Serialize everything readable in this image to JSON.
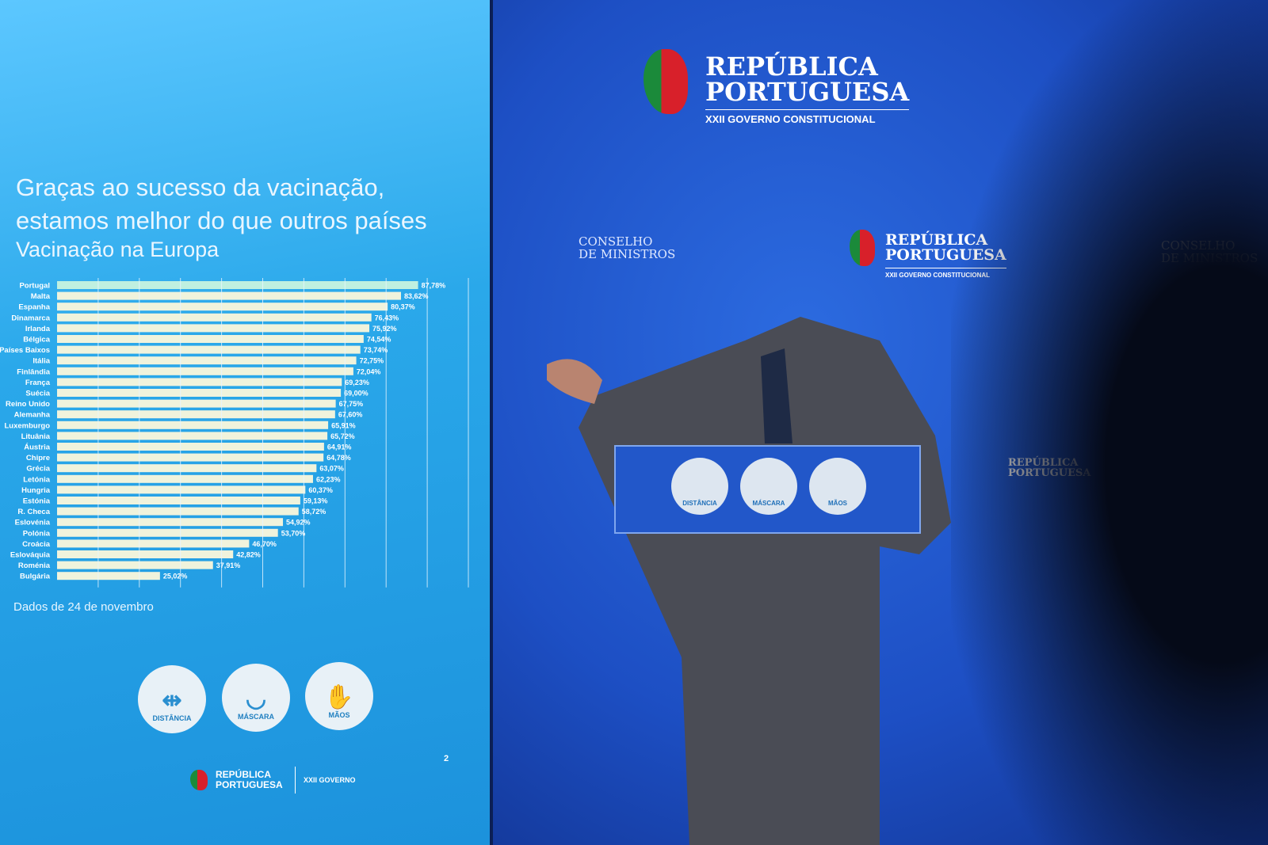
{
  "slide": {
    "title": "Graças ao sucesso da vacinação, estamos melhor do que outros países",
    "subtitle": "Vacinação na Europa",
    "source": "Dados de 24 de novembro",
    "icons": [
      {
        "label": "DISTÂNCIA",
        "icon": "distance-icon"
      },
      {
        "label": "MÁSCARA",
        "icon": "mask-icon"
      },
      {
        "label": "MÃOS",
        "icon": "hand-wash-icon"
      }
    ],
    "page_number": "2",
    "footer": {
      "brand": "REPÚBLICA PORTUGUESA",
      "government": "XXII GOVERNO"
    }
  },
  "backdrop": {
    "brand": "REPÚBLICA PORTUGUESA",
    "brand_line1": "REPÚBLICA",
    "brand_line2": "PORTUGUESA",
    "government": "XXII GOVERNO CONSTITUCIONAL",
    "council_line1": "CONSELHO",
    "council_line2": "DE MINISTROS",
    "podium_icons": [
      "DISTÂNCIA",
      "MÁSCARA",
      "MÃOS"
    ]
  },
  "colors": {
    "bar": "#f0f3dc",
    "highlight_bar": "#bff0e0",
    "slide_bg": "#29a6ea",
    "backdrop": "#1d55c8"
  },
  "chart_data": {
    "type": "bar",
    "orientation": "horizontal",
    "title": "Vacinação na Europa",
    "categories": [
      "Portugal",
      "Malta",
      "Espanha",
      "Dinamarca",
      "Irlanda",
      "Bélgica",
      "Países Baixos",
      "Itália",
      "Finlândia",
      "França",
      "Suécia",
      "Reino Unido",
      "Alemanha",
      "Luxemburgo",
      "Lituânia",
      "Áustria",
      "Chipre",
      "Grécia",
      "Letónia",
      "Hungria",
      "Estónia",
      "R. Checa",
      "Eslovénia",
      "Polónia",
      "Croácia",
      "Eslováquia",
      "Roménia",
      "Bulgária"
    ],
    "values": [
      87.78,
      83.62,
      80.37,
      76.43,
      75.92,
      74.54,
      73.74,
      72.75,
      72.04,
      69.23,
      69.0,
      67.75,
      67.6,
      65.91,
      65.72,
      64.91,
      64.78,
      63.07,
      62.23,
      60.37,
      59.13,
      58.72,
      54.92,
      53.7,
      46.7,
      42.82,
      37.91,
      25.02
    ],
    "labels": [
      "87,78%",
      "83,62%",
      "80,37%",
      "76,43%",
      "75,92%",
      "74,54%",
      "73,74%",
      "72,75%",
      "72,04%",
      "69,23%",
      "69,00%",
      "67,75%",
      "67,60%",
      "65,91%",
      "65,72%",
      "64,91%",
      "64,78%",
      "63,07%",
      "62,23%",
      "60,37%",
      "59,13%",
      "58,72%",
      "54,92%",
      "53,70%",
      "46,70%",
      "42,82%",
      "37,91%",
      "25,02%"
    ],
    "unit": "%",
    "xlim": [
      0,
      100
    ],
    "grid": true,
    "highlight": "Portugal",
    "source": "Dados de 24 de novembro"
  }
}
